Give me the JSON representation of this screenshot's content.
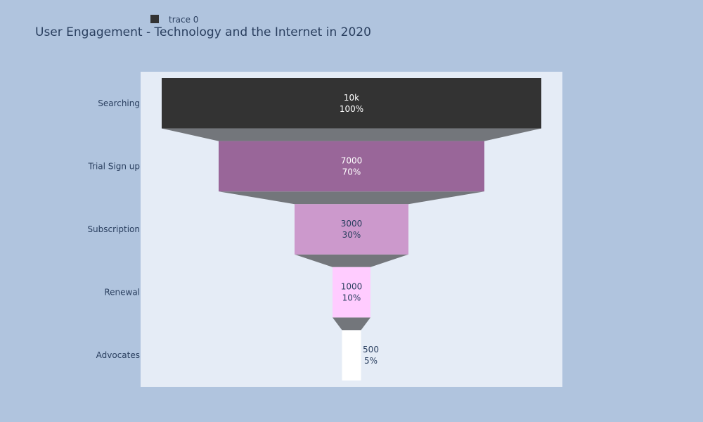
{
  "colors": {
    "page_bg": "#b0c4de",
    "plot_bg": "#e5ecf6",
    "connector": "#73767b",
    "text_dark": "#2a3f5f",
    "text_light": "#ffffff"
  },
  "chart_data": {
    "type": "funnel",
    "title": "User Engagement - Technology and the Internet in 2020",
    "legend": {
      "entries": [
        "trace 0"
      ],
      "placement": "top-left"
    },
    "series": [
      {
        "name": "trace 0",
        "stages": [
          {
            "label": "Searching",
            "value": 10000,
            "value_text": "10k",
            "percent_text": "100%",
            "color": "#333333"
          },
          {
            "label": "Trial Sign up",
            "value": 7000,
            "value_text": "7000",
            "percent_text": "70%",
            "color": "#996699"
          },
          {
            "label": "Subscription",
            "value": 3000,
            "value_text": "3000",
            "percent_text": "30%",
            "color": "#cc99cc"
          },
          {
            "label": "Renewal",
            "value": 1000,
            "value_text": "1000",
            "percent_text": "10%",
            "color": "#ffccff"
          },
          {
            "label": "Advocates",
            "value": 500,
            "value_text": "500",
            "percent_text": "5%",
            "color": "#ffffff"
          }
        ]
      }
    ]
  }
}
